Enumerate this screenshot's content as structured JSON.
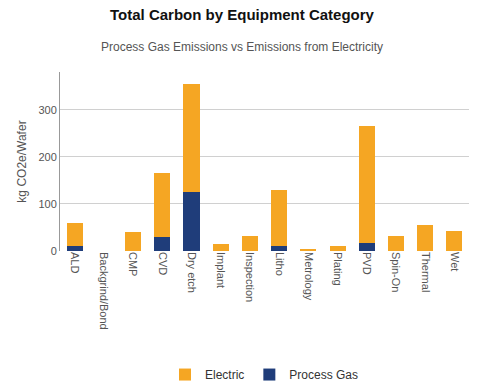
{
  "chart_data": {
    "type": "bar",
    "stacked": true,
    "title": "Total Carbon by Equipment Category",
    "subtitle": "Process Gas Emissions vs Emissions from Electricity",
    "ylabel": "kg CO2e/Wafer",
    "categories": [
      "ALD",
      "Backgrind/Bond",
      "CMP",
      "CVD",
      "Dry etch",
      "Implant",
      "Inspection",
      "Litho",
      "Metrology",
      "Plating",
      "PVD",
      "Spin-On",
      "Thermal",
      "Wet"
    ],
    "series": [
      {
        "name": "Process Gas",
        "color": "#1F3D7A",
        "values": [
          10,
          0,
          0,
          30,
          125,
          0,
          0,
          10,
          0,
          0,
          18,
          0,
          0,
          0
        ]
      },
      {
        "name": "Electric",
        "color": "#F5A623",
        "values": [
          50,
          0,
          40,
          135,
          230,
          14,
          32,
          120,
          4,
          10,
          247,
          32,
          55,
          42
        ]
      }
    ],
    "ylim": [
      0,
      380
    ],
    "yticks": [
      0,
      100,
      200,
      300
    ],
    "grid": true,
    "legend": "bottom"
  }
}
